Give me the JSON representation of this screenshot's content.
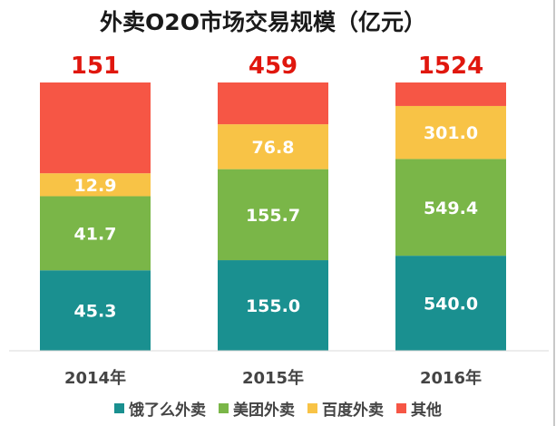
{
  "chart_data": {
    "type": "bar",
    "stacked": true,
    "title": "外卖O2O市场交易规模（亿元）",
    "xlabel": "",
    "ylabel": "",
    "categories": [
      "2014年",
      "2015年",
      "2016年"
    ],
    "totals": [
      "151",
      "459",
      "1524"
    ],
    "series": [
      {
        "name": "饿了么外卖",
        "color": "#1a9090",
        "values": [
          45.3,
          155.0,
          540.0
        ],
        "labels": [
          "45.3",
          "155.0",
          "540.0"
        ]
      },
      {
        "name": "美团外卖",
        "color": "#7ab648",
        "values": [
          41.7,
          155.7,
          549.4
        ],
        "labels": [
          "41.7",
          "155.7",
          "549.4"
        ]
      },
      {
        "name": "百度外卖",
        "color": "#f8c346",
        "values": [
          12.9,
          76.8,
          301.0
        ],
        "labels": [
          "12.9",
          "76.8",
          "301.0"
        ]
      },
      {
        "name": "其他",
        "color": "#f65645",
        "values": [
          51.1,
          71.5,
          133.6
        ],
        "labels": [
          "",
          "",
          ""
        ]
      }
    ],
    "normalized": true,
    "grid": false,
    "legend_position": "bottom",
    "colors": {
      "total_label": "#e0170e",
      "axis_line": "#d9d9d9",
      "value_label": "#ffffff",
      "title": "#1a1a1a"
    }
  }
}
